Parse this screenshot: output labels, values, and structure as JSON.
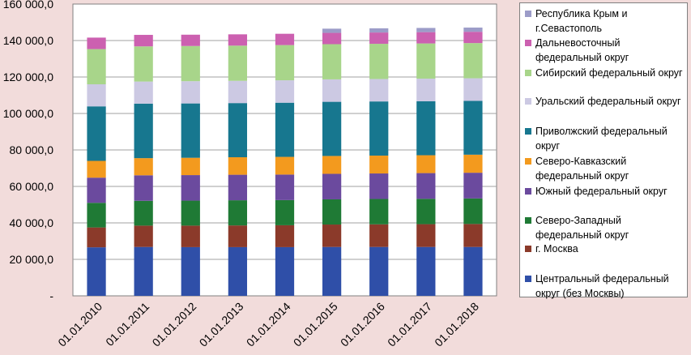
{
  "chart_data": {
    "type": "bar",
    "stacked": true,
    "categories": [
      "01.01.2010",
      "01.01.2011",
      "01.01.2012",
      "01.01.2013",
      "01.01.2014",
      "01.01.2015",
      "01.01.2016",
      "01.01.2017",
      "01.01.2018"
    ],
    "ylim": [
      0,
      160000
    ],
    "yticks": [
      {
        "value": 0,
        "label": "-"
      },
      {
        "value": 20000,
        "label": "20 000,0"
      },
      {
        "value": 40000,
        "label": "40 000,0"
      },
      {
        "value": 60000,
        "label": "60 000,0"
      },
      {
        "value": 80000,
        "label": "80 000,0"
      },
      {
        "value": 100000,
        "label": "100 000,0"
      },
      {
        "value": 120000,
        "label": "120 000,0"
      },
      {
        "value": 140000,
        "label": "140 000,0"
      },
      {
        "value": 160000,
        "label": "160 000,0"
      }
    ],
    "grid": true,
    "legend_position": "right",
    "series": [
      {
        "name": "Центральный федеральный округ (без Москвы)",
        "color": "#2F4FA8",
        "values": [
          26600,
          26800,
          26700,
          26700,
          26700,
          26800,
          26800,
          26800,
          26800
        ]
      },
      {
        "name": "г. Москва",
        "color": "#8B3A2A",
        "values": [
          10900,
          11700,
          11800,
          11900,
          12000,
          12300,
          12400,
          12500,
          12600
        ]
      },
      {
        "name": "Северо-Западный федеральный округ",
        "color": "#1F7A35",
        "values": [
          13500,
          13600,
          13700,
          13800,
          13800,
          13800,
          13900,
          13900,
          14000
        ]
      },
      {
        "name": "Южный федеральный округ",
        "color": "#6B4A9E",
        "values": [
          13800,
          14000,
          14000,
          14000,
          14000,
          14000,
          14000,
          14100,
          14100
        ]
      },
      {
        "name": "Северо-Кавказский федеральный округ",
        "color": "#F39A1E",
        "values": [
          9200,
          9400,
          9500,
          9600,
          9700,
          9800,
          9800,
          9800,
          9900
        ]
      },
      {
        "name": "Приволжский федеральный округ",
        "color": "#17778F",
        "values": [
          29900,
          29900,
          29800,
          29700,
          29700,
          29700,
          29700,
          29600,
          29500
        ]
      },
      {
        "name": "Уральский федеральный округ",
        "color": "#CCC9E3",
        "values": [
          12100,
          12100,
          12200,
          12200,
          12300,
          12300,
          12300,
          12400,
          12400
        ]
      },
      {
        "name": "Сибирский федеральный округ",
        "color": "#A8D58A",
        "values": [
          19300,
          19300,
          19300,
          19300,
          19300,
          19300,
          19300,
          19300,
          19300
        ]
      },
      {
        "name": "Дальневосточный федеральный округ",
        "color": "#CC60B0",
        "values": [
          6300,
          6300,
          6200,
          6200,
          6200,
          6200,
          6200,
          6200,
          6200
        ]
      },
      {
        "name": "Республика Крым и г.Севастополь",
        "color": "#9C9CC8",
        "values": [
          0,
          0,
          0,
          0,
          0,
          2300,
          2300,
          2300,
          2300
        ]
      }
    ],
    "legend_order": [
      9,
      8,
      7,
      6,
      5,
      4,
      3,
      2,
      1,
      0
    ]
  }
}
